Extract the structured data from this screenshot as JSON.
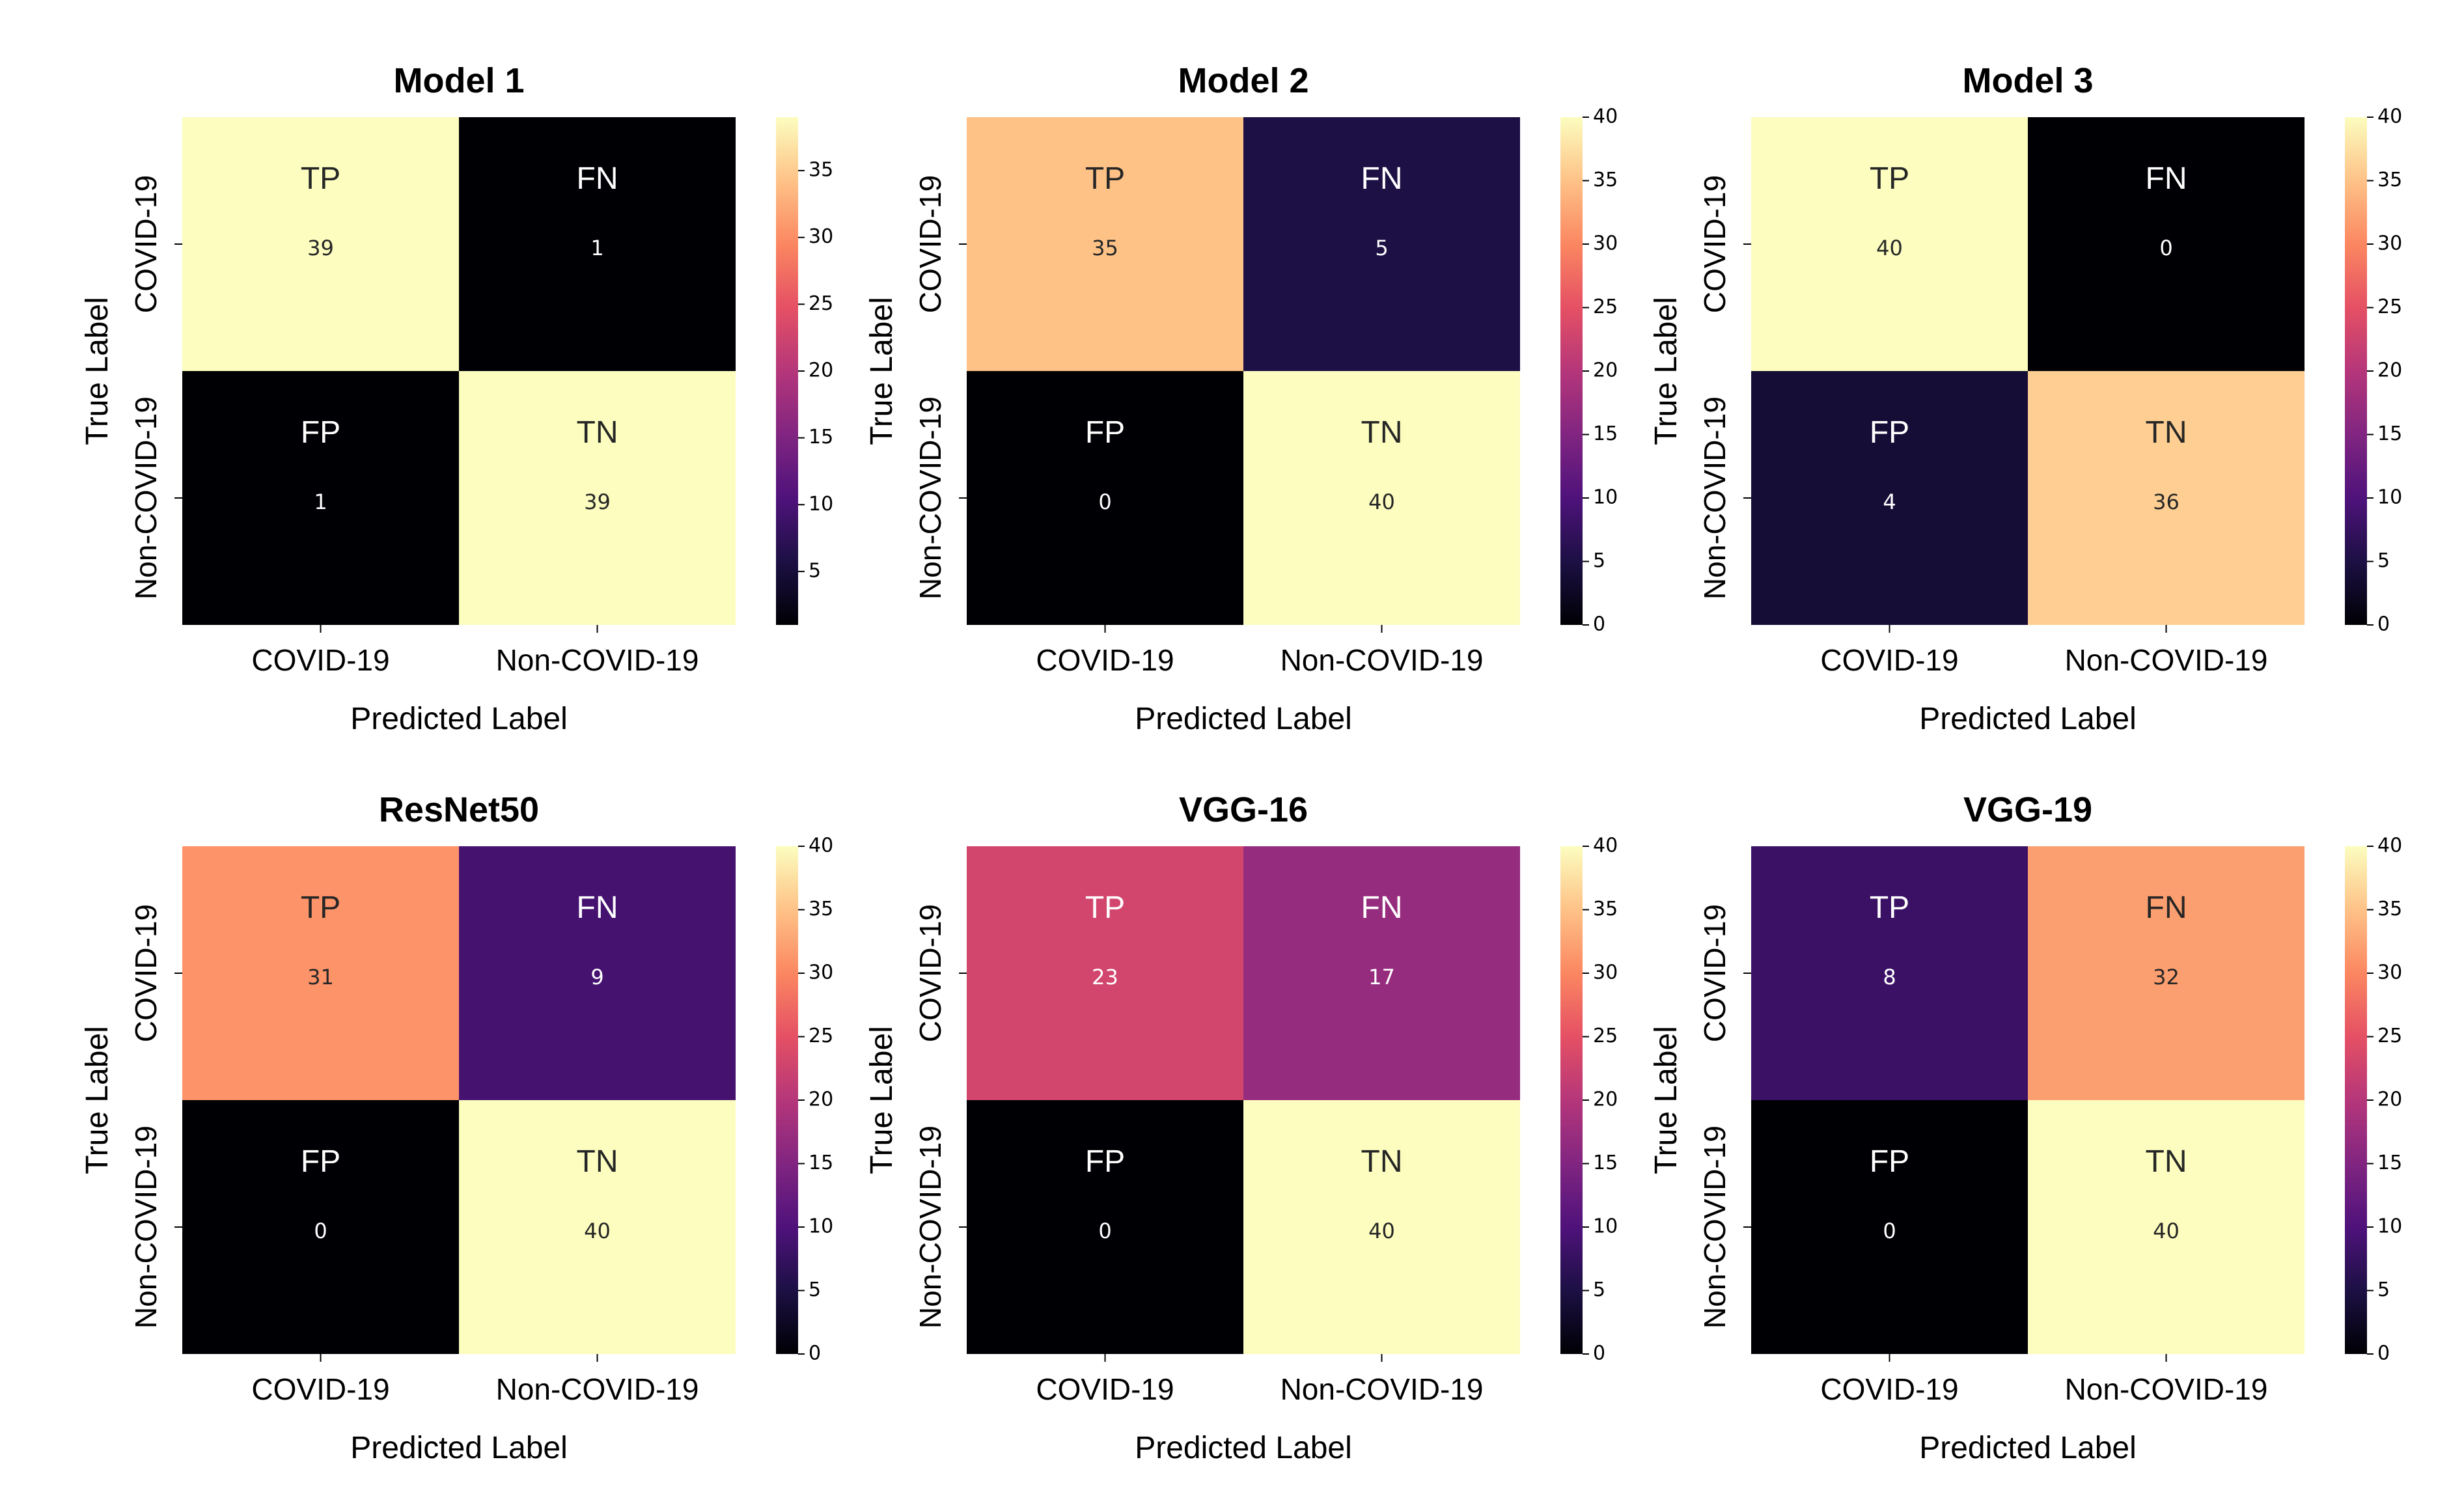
{
  "chart_data": [
    {
      "type": "heatmap",
      "title": "Model 1",
      "xlabel": "Predicted Label",
      "ylabel": "True Label",
      "x_categories": [
        "COVID-19",
        "Non-COVID-19"
      ],
      "y_categories": [
        "COVID-19",
        "Non-COVID-19"
      ],
      "cell_tags": [
        [
          "TP",
          "FN"
        ],
        [
          "FP",
          "TN"
        ]
      ],
      "values": [
        [
          39,
          1
        ],
        [
          1,
          39
        ]
      ],
      "colorbar_range": [
        1,
        39
      ],
      "colorbar_ticks": [
        5,
        10,
        15,
        20,
        25,
        30,
        35
      ],
      "colormap": "magma"
    },
    {
      "type": "heatmap",
      "title": "Model 2",
      "xlabel": "Predicted Label",
      "ylabel": "True Label",
      "x_categories": [
        "COVID-19",
        "Non-COVID-19"
      ],
      "y_categories": [
        "COVID-19",
        "Non-COVID-19"
      ],
      "cell_tags": [
        [
          "TP",
          "FN"
        ],
        [
          "FP",
          "TN"
        ]
      ],
      "values": [
        [
          35,
          5
        ],
        [
          0,
          40
        ]
      ],
      "colorbar_range": [
        0,
        40
      ],
      "colorbar_ticks": [
        0,
        5,
        10,
        15,
        20,
        25,
        30,
        35,
        40
      ],
      "colormap": "magma"
    },
    {
      "type": "heatmap",
      "title": "Model 3",
      "xlabel": "Predicted Label",
      "ylabel": "True Label",
      "x_categories": [
        "COVID-19",
        "Non-COVID-19"
      ],
      "y_categories": [
        "COVID-19",
        "Non-COVID-19"
      ],
      "cell_tags": [
        [
          "TP",
          "FN"
        ],
        [
          "FP",
          "TN"
        ]
      ],
      "values": [
        [
          40,
          0
        ],
        [
          4,
          36
        ]
      ],
      "colorbar_range": [
        0,
        40
      ],
      "colorbar_ticks": [
        0,
        5,
        10,
        15,
        20,
        25,
        30,
        35,
        40
      ],
      "colormap": "magma"
    },
    {
      "type": "heatmap",
      "title": "ResNet50",
      "xlabel": "Predicted Label",
      "ylabel": "True Label",
      "x_categories": [
        "COVID-19",
        "Non-COVID-19"
      ],
      "y_categories": [
        "COVID-19",
        "Non-COVID-19"
      ],
      "cell_tags": [
        [
          "TP",
          "FN"
        ],
        [
          "FP",
          "TN"
        ]
      ],
      "values": [
        [
          31,
          9
        ],
        [
          0,
          40
        ]
      ],
      "colorbar_range": [
        0,
        40
      ],
      "colorbar_ticks": [
        0,
        5,
        10,
        15,
        20,
        25,
        30,
        35,
        40
      ],
      "colormap": "magma"
    },
    {
      "type": "heatmap",
      "title": "VGG-16",
      "xlabel": "Predicted Label",
      "ylabel": "True Label",
      "x_categories": [
        "COVID-19",
        "Non-COVID-19"
      ],
      "y_categories": [
        "COVID-19",
        "Non-COVID-19"
      ],
      "cell_tags": [
        [
          "TP",
          "FN"
        ],
        [
          "FP",
          "TN"
        ]
      ],
      "values": [
        [
          23,
          17
        ],
        [
          0,
          40
        ]
      ],
      "colorbar_range": [
        0,
        40
      ],
      "colorbar_ticks": [
        0,
        5,
        10,
        15,
        20,
        25,
        30,
        35,
        40
      ],
      "colormap": "magma"
    },
    {
      "type": "heatmap",
      "title": "VGG-19",
      "xlabel": "Predicted Label",
      "ylabel": "True Label",
      "x_categories": [
        "COVID-19",
        "Non-COVID-19"
      ],
      "y_categories": [
        "COVID-19",
        "Non-COVID-19"
      ],
      "cell_tags": [
        [
          "TP",
          "FN"
        ],
        [
          "FP",
          "TN"
        ]
      ],
      "values": [
        [
          8,
          32
        ],
        [
          0,
          40
        ]
      ],
      "colorbar_range": [
        0,
        40
      ],
      "colorbar_ticks": [
        0,
        5,
        10,
        15,
        20,
        25,
        30,
        35,
        40
      ],
      "colormap": "magma"
    }
  ]
}
